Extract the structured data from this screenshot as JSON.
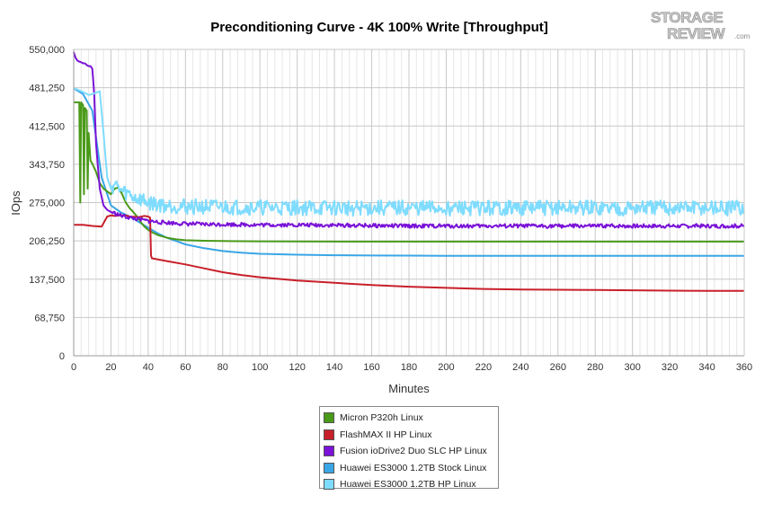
{
  "chart_data": {
    "type": "line",
    "title": "Preconditioning Curve - 4K 100% Write [Throughput]",
    "xlabel": "Minutes",
    "ylabel": "IOps",
    "xlim": [
      0,
      360
    ],
    "ylim": [
      0,
      550000
    ],
    "x_ticks": [
      0,
      20,
      40,
      60,
      80,
      100,
      120,
      140,
      160,
      180,
      200,
      220,
      240,
      260,
      280,
      300,
      320,
      340,
      360
    ],
    "y_ticks": [
      0,
      68750,
      137500,
      206250,
      275000,
      343750,
      412500,
      481250,
      550000
    ],
    "y_tick_labels": [
      "0",
      "68,750",
      "137,500",
      "206,250",
      "275,000",
      "343,750",
      "412,500",
      "481,250",
      "550,000"
    ],
    "grid": true,
    "legend_position": "bottom",
    "series": [
      {
        "name": "Micron P320h Linux",
        "color": "#4a9a1a",
        "x": [
          0,
          3,
          3.5,
          4,
          5,
          5.5,
          6,
          7,
          7.5,
          8,
          9,
          10,
          12,
          14,
          16,
          18,
          20,
          22,
          24,
          26,
          28,
          30,
          32,
          34,
          36,
          38,
          40,
          42,
          45,
          50,
          55,
          60,
          70,
          80,
          100,
          150,
          200,
          250,
          300,
          360
        ],
        "y": [
          455000,
          455000,
          275000,
          455000,
          450000,
          290000,
          445000,
          440000,
          300000,
          400000,
          350000,
          345000,
          330000,
          310000,
          300000,
          295000,
          290000,
          300000,
          302000,
          290000,
          275000,
          265000,
          258000,
          250000,
          240000,
          232000,
          226000,
          222000,
          217000,
          212000,
          209000,
          207500,
          206500,
          206000,
          205500,
          205000,
          205000,
          205000,
          205000,
          205000
        ]
      },
      {
        "name": "FlashMAX II HP Linux",
        "color": "#c8202a",
        "x": [
          0,
          5,
          10,
          15,
          18,
          20,
          22,
          25,
          28,
          30,
          35,
          38,
          40,
          41,
          41.5,
          42,
          50,
          60,
          70,
          80,
          90,
          100,
          120,
          140,
          160,
          180,
          200,
          220,
          240,
          260,
          280,
          300,
          320,
          340,
          360
        ],
        "y": [
          235000,
          235000,
          233000,
          232000,
          250000,
          252000,
          251000,
          252000,
          252000,
          250000,
          249000,
          251000,
          250000,
          248000,
          180000,
          175000,
          170000,
          164000,
          157000,
          150000,
          145000,
          141000,
          135000,
          131000,
          127000,
          124000,
          122000,
          120000,
          119000,
          118500,
          118000,
          117500,
          117000,
          116500,
          116500
        ]
      },
      {
        "name": "Fusion ioDrive2 Duo SLC HP Linux",
        "color": "#7a12d8",
        "x": [
          0,
          1,
          2,
          3,
          4,
          5,
          6,
          7,
          8,
          9,
          10,
          11,
          12,
          14,
          16,
          18,
          20,
          22,
          25,
          30,
          35,
          40,
          45,
          50,
          55,
          60,
          70,
          80,
          100,
          120,
          150,
          180,
          200,
          250,
          300,
          360
        ],
        "y": [
          545000,
          535000,
          530000,
          528000,
          527000,
          525000,
          525000,
          522000,
          520000,
          520000,
          515000,
          470000,
          380000,
          300000,
          270000,
          262000,
          258000,
          256000,
          252000,
          248000,
          245000,
          242000,
          240000,
          239000,
          238000,
          237000,
          236000,
          236000,
          235000,
          235000,
          234000,
          233000,
          233000,
          233000,
          233000,
          233000
        ],
        "noise_amplitude": 3500
      },
      {
        "name": "Huawei ES3000 1.2TB Stock Linux",
        "color": "#3aa6e6",
        "x": [
          0,
          5,
          10,
          15,
          20,
          25,
          30,
          35,
          40,
          45,
          50,
          55,
          60,
          70,
          80,
          90,
          100,
          120,
          140,
          160,
          180,
          200,
          250,
          300,
          360
        ],
        "y": [
          480000,
          470000,
          440000,
          320000,
          270000,
          258000,
          250000,
          240000,
          230000,
          220000,
          212000,
          206000,
          200000,
          193000,
          188000,
          185000,
          183000,
          181500,
          180500,
          180000,
          179800,
          179500,
          179500,
          179500,
          179500
        ]
      },
      {
        "name": "Huawei ES3000 1.2TB HP Linux",
        "color": "#7fdcff",
        "x": [
          0,
          2,
          4,
          6,
          8,
          10,
          12,
          14,
          16,
          18,
          20,
          22,
          24,
          26,
          28,
          30,
          32,
          34,
          36,
          38,
          40,
          45,
          50,
          60,
          80,
          100,
          150,
          200,
          250,
          300,
          360
        ],
        "y": [
          480000,
          478000,
          475000,
          472000,
          468000,
          470000,
          472000,
          475000,
          400000,
          320000,
          300000,
          310000,
          300000,
          295000,
          292000,
          290000,
          285000,
          282000,
          280000,
          278000,
          275000,
          272000,
          270000,
          268000,
          267000,
          266000,
          265000,
          265000,
          265000,
          265000,
          265000
        ],
        "noise_amplitude": 14000
      }
    ]
  },
  "logo": {
    "line1": "STORAGE",
    "line2": "REVIEW",
    "suffix": ".com"
  }
}
